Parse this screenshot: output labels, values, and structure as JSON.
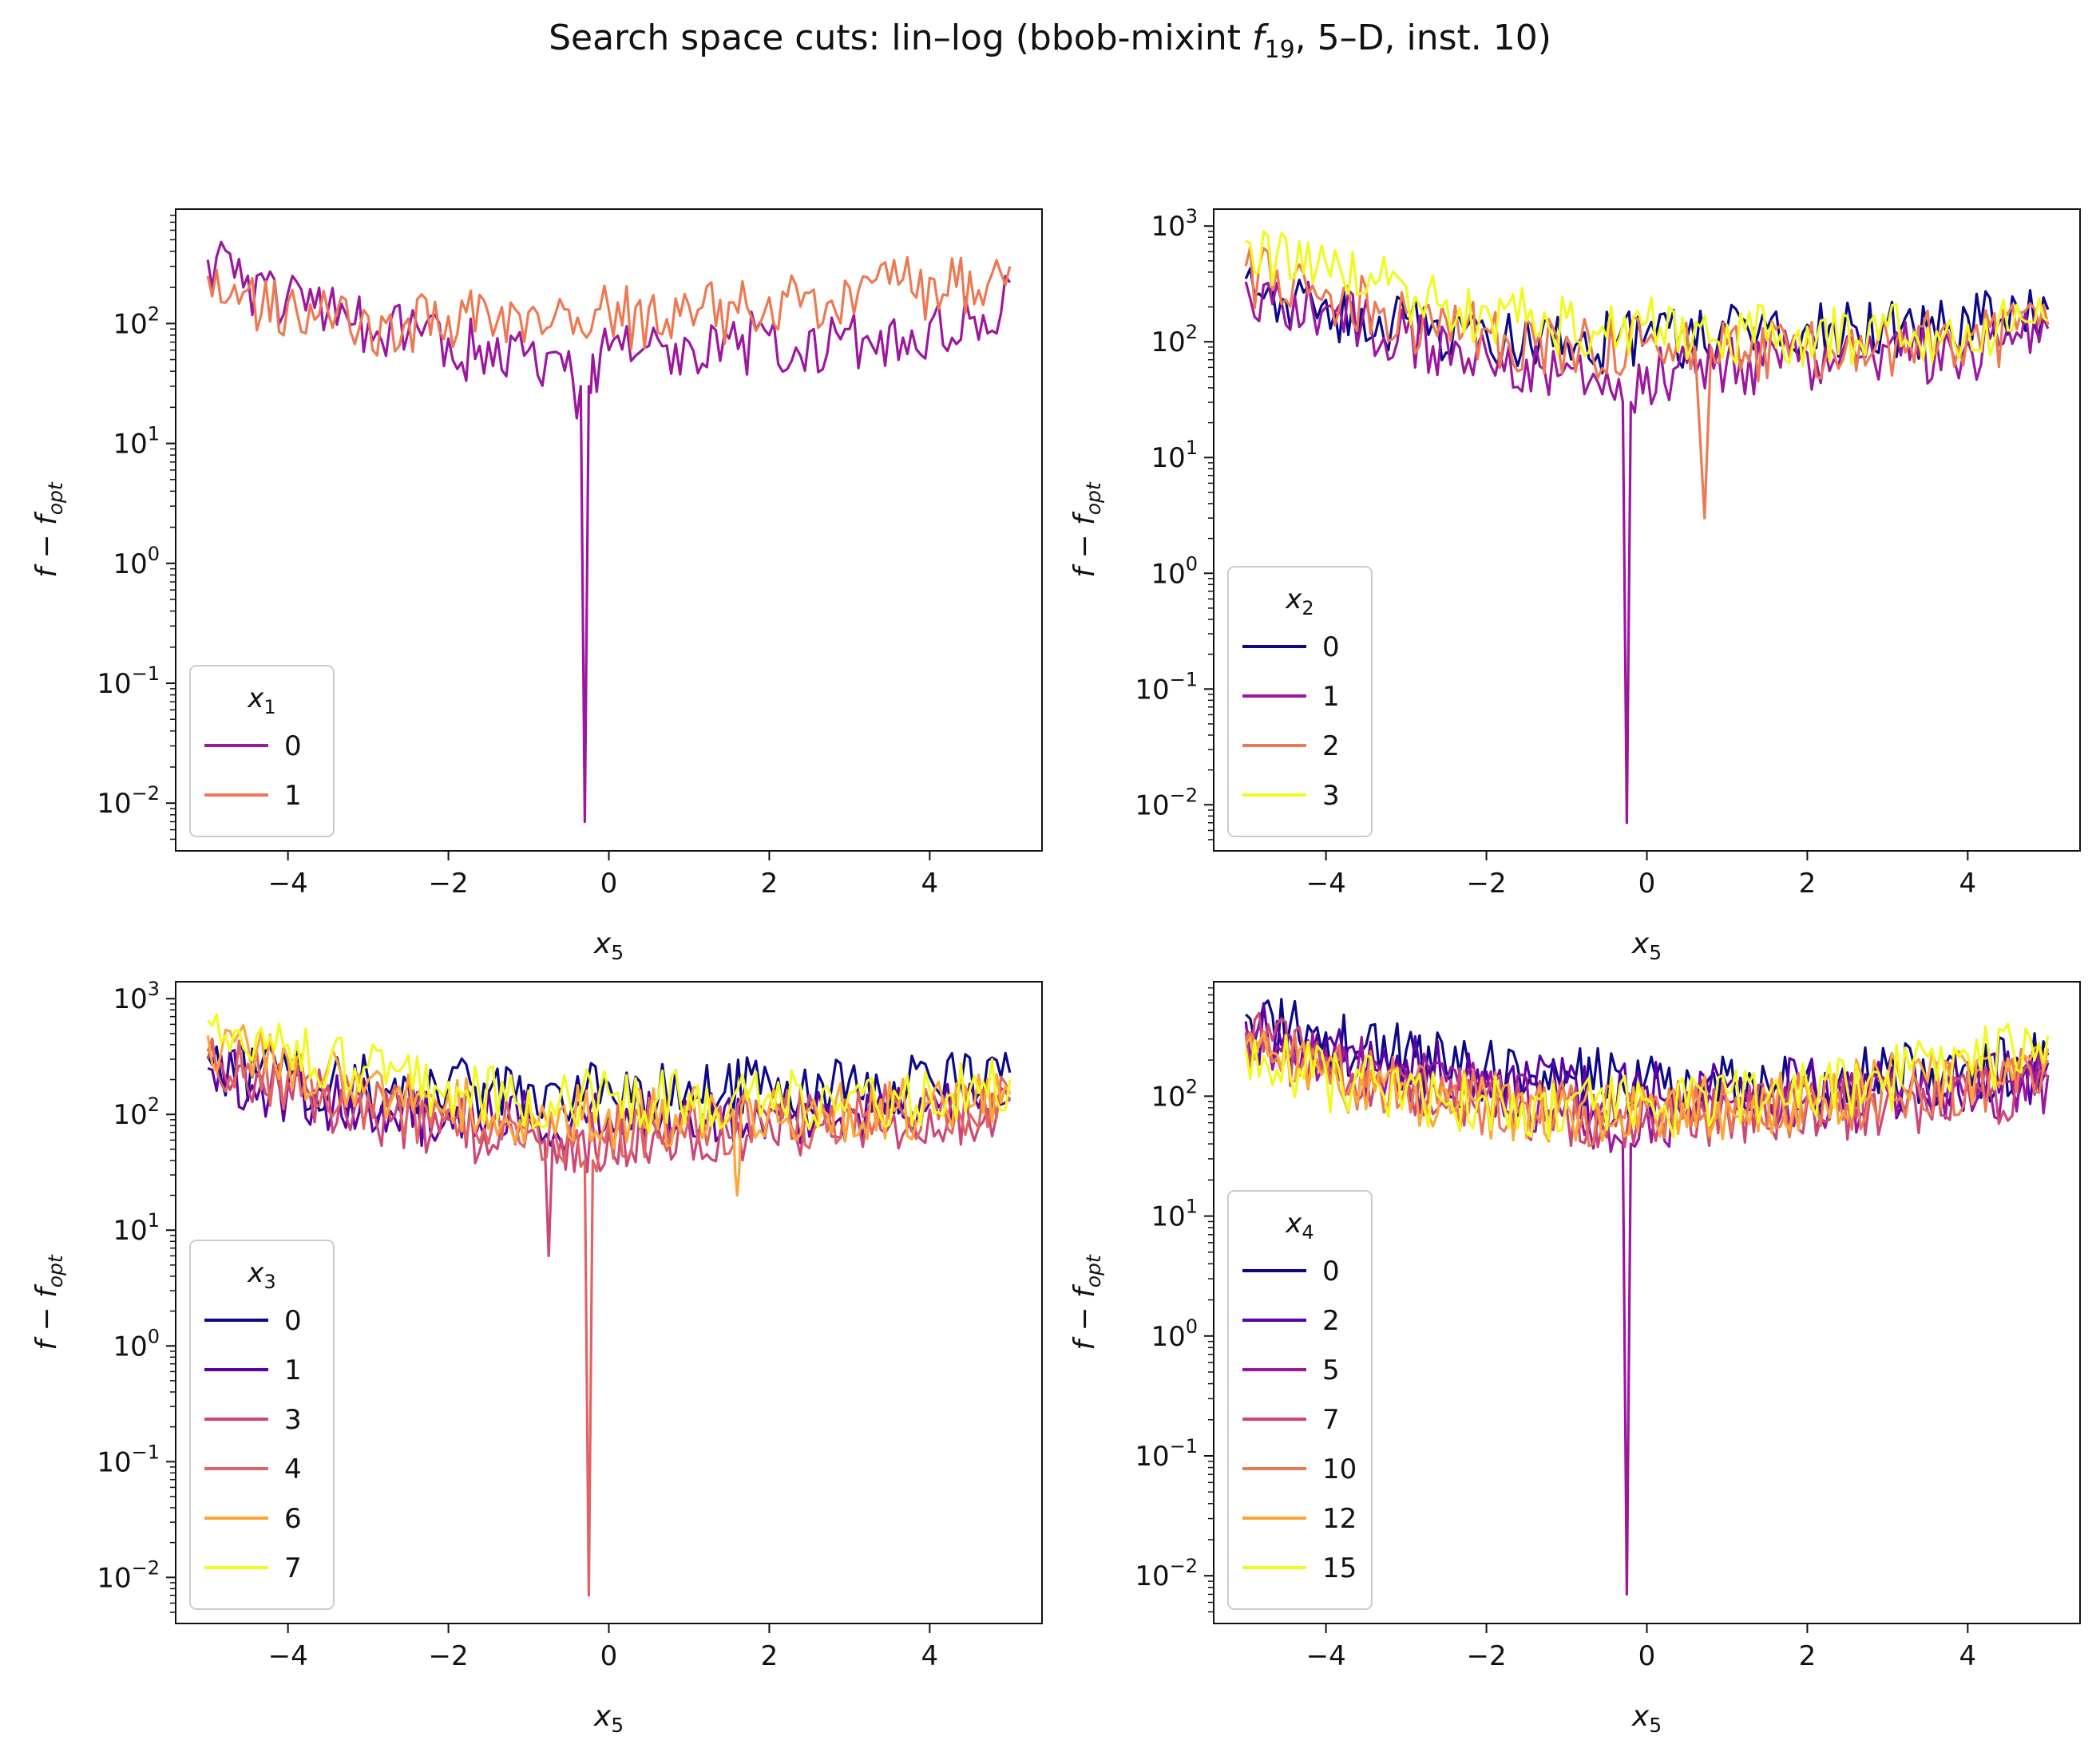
{
  "title": "Search space cuts: lin–log (bbob-mixint f19, 5–D, inst. 10)",
  "title_parts": {
    "pre": "Search space cuts: lin–log (bbob-mixint ",
    "f": "f",
    "sub": "19",
    "post": ", 5–D, inst. 10)"
  },
  "chart_data": [
    {
      "type": "line",
      "panel": "top-left",
      "xlabel": "x5",
      "ylabel": "f − f_opt",
      "xlim": [
        -5.4,
        5.4
      ],
      "ylim": [
        0.004,
        900
      ],
      "yscale": "log",
      "xticks": [
        "−4",
        "−2",
        "0",
        "2",
        "4"
      ],
      "yticks": [
        "10^1",
        "10^2"
      ],
      "legend": {
        "title": "x1",
        "placement": "lower-left"
      },
      "series": [
        {
          "name": "0",
          "color": "#9c179e",
          "x": [
            -5.0,
            -4.5,
            -4.0,
            -3.5,
            -3.0,
            -2.5,
            -2.0,
            -1.5,
            -1.0,
            -0.6,
            -0.35,
            -0.3,
            -0.25,
            -0.2,
            0.0,
            0.5,
            1.0,
            1.5,
            2.0,
            2.5,
            3.0,
            3.5,
            4.0,
            4.5,
            5.0
          ],
          "y": [
            340,
            250,
            180,
            130,
            100,
            85,
            75,
            70,
            60,
            55,
            30,
            0.007,
            30,
            55,
            60,
            65,
            70,
            75,
            80,
            85,
            90,
            95,
            100,
            110,
            220
          ]
        },
        {
          "name": "1",
          "color": "#ed7953",
          "x": [
            -5.0,
            -4.5,
            -4.0,
            -3.5,
            -3.0,
            -2.5,
            -2.0,
            -1.5,
            -1.0,
            -0.5,
            0.0,
            0.5,
            1.0,
            1.5,
            2.0,
            2.5,
            3.0,
            3.5,
            4.0,
            4.5,
            5.0
          ],
          "y": [
            250,
            190,
            150,
            125,
            115,
            110,
            115,
            120,
            125,
            130,
            130,
            135,
            140,
            150,
            165,
            180,
            200,
            215,
            240,
            270,
            300
          ]
        }
      ]
    },
    {
      "type": "line",
      "panel": "top-right",
      "xlabel": "x5",
      "ylabel": "f − f_opt",
      "xlim": [
        -5.4,
        5.4
      ],
      "ylim": [
        0.004,
        1400
      ],
      "yscale": "log",
      "xticks": [
        "−4",
        "−2",
        "0",
        "2",
        "4"
      ],
      "yticks": [
        "10^0",
        "10^1",
        "10^2",
        "10^3"
      ],
      "legend": {
        "title": "x2",
        "placement": "lower-left"
      },
      "series": [
        {
          "name": "0",
          "color": "#0d0887",
          "x": [
            -5.0,
            -4.0,
            -3.0,
            -2.0,
            -1.0,
            0.0,
            1.0,
            2.0,
            3.0,
            4.0,
            5.0
          ],
          "y": [
            350,
            230,
            160,
            120,
            110,
            120,
            130,
            140,
            150,
            165,
            190
          ]
        },
        {
          "name": "1",
          "color": "#9c179e",
          "x": [
            -5.0,
            -4.0,
            -3.0,
            -2.0,
            -1.0,
            -0.5,
            -0.3,
            -0.25,
            -0.2,
            0.0,
            1.0,
            2.0,
            3.0,
            4.0,
            5.0
          ],
          "y": [
            330,
            200,
            120,
            80,
            65,
            55,
            30,
            0.007,
            30,
            60,
            70,
            80,
            90,
            100,
            130
          ]
        },
        {
          "name": "2",
          "color": "#ed7953",
          "x": [
            -5.0,
            -4.0,
            -3.0,
            -2.0,
            -1.0,
            0.0,
            0.6,
            0.72,
            0.8,
            1.0,
            2.0,
            3.0,
            4.0,
            5.0
          ],
          "y": [
            450,
            280,
            180,
            130,
            110,
            100,
            90,
            3.0,
            90,
            95,
            100,
            110,
            120,
            140
          ]
        },
        {
          "name": "3",
          "color": "#f0f921",
          "x": [
            -5.0,
            -4.0,
            -3.0,
            -2.0,
            -1.0,
            0.0,
            1.0,
            2.0,
            3.0,
            4.0,
            5.0
          ],
          "y": [
            750,
            480,
            300,
            200,
            160,
            150,
            140,
            135,
            135,
            140,
            150
          ]
        }
      ]
    },
    {
      "type": "line",
      "panel": "bottom-left",
      "xlabel": "x5",
      "ylabel": "f − f_opt",
      "xlim": [
        -5.4,
        5.4
      ],
      "ylim": [
        0.004,
        1400
      ],
      "yscale": "log",
      "xticks": [
        "−4",
        "−2",
        "0",
        "2",
        "4"
      ],
      "yticks": [
        "10^0",
        "10^1",
        "10^2",
        "10^3"
      ],
      "legend": {
        "title": "x3",
        "placement": "lower-left"
      },
      "series": [
        {
          "name": "0",
          "color": "#0d0887",
          "x": [
            -5.0,
            -4.0,
            -3.0,
            -2.0,
            -1.0,
            0.0,
            1.0,
            2.0,
            3.0,
            4.0,
            5.0
          ],
          "y": [
            320,
            240,
            200,
            190,
            180,
            185,
            190,
            195,
            200,
            210,
            230
          ]
        },
        {
          "name": "1",
          "color": "#5c01a6",
          "x": [
            -5.0,
            -4.0,
            -3.0,
            -2.0,
            -1.0,
            0.0,
            1.0,
            2.0,
            3.0,
            4.0,
            5.0
          ],
          "y": [
            250,
            180,
            130,
            110,
            100,
            100,
            105,
            110,
            115,
            125,
            140
          ]
        },
        {
          "name": "3",
          "color": "#cc4778",
          "x": [
            -5.0,
            -4.0,
            -3.0,
            -2.0,
            -1.0,
            -0.8,
            -0.75,
            -0.7,
            0.0,
            1.0,
            2.0,
            3.0,
            4.0,
            5.0
          ],
          "y": [
            300,
            190,
            120,
            90,
            70,
            60,
            6.0,
            60,
            70,
            80,
            90,
            100,
            110,
            130
          ]
        },
        {
          "name": "4",
          "color": "#e16462",
          "x": [
            -5.0,
            -4.0,
            -3.0,
            -2.0,
            -1.0,
            -0.5,
            -0.3,
            -0.25,
            -0.2,
            0.0,
            1.0,
            2.0,
            3.0,
            4.0,
            5.0
          ],
          "y": [
            350,
            220,
            150,
            110,
            90,
            80,
            40,
            0.007,
            40,
            85,
            95,
            105,
            115,
            125,
            150
          ]
        },
        {
          "name": "6",
          "color": "#fca636",
          "x": [
            -5.0,
            -4.0,
            -3.0,
            -2.0,
            -1.0,
            0.0,
            1.0,
            1.55,
            1.6,
            1.65,
            2.0,
            3.0,
            4.0,
            5.0
          ],
          "y": [
            480,
            300,
            200,
            150,
            120,
            110,
            110,
            110,
            20,
            110,
            115,
            120,
            130,
            150
          ]
        },
        {
          "name": "7",
          "color": "#f0f921",
          "x": [
            -5.0,
            -4.0,
            -3.0,
            -2.0,
            -1.0,
            0.0,
            1.0,
            2.0,
            3.0,
            4.0,
            5.0
          ],
          "y": [
            650,
            400,
            260,
            190,
            160,
            150,
            150,
            150,
            155,
            165,
            200
          ]
        }
      ]
    },
    {
      "type": "line",
      "panel": "bottom-right",
      "xlabel": "x5",
      "ylabel": "f − f_opt",
      "xlim": [
        -5.4,
        5.4
      ],
      "ylim": [
        0.004,
        900
      ],
      "yscale": "log",
      "xticks": [
        "−4",
        "−2",
        "0",
        "2",
        "4"
      ],
      "yticks": [
        "10^1",
        "10^2"
      ],
      "legend": {
        "title": "x4",
        "placement": "lower-left"
      },
      "series": [
        {
          "name": "0",
          "color": "#0d0887",
          "x": [
            -5.0,
            -4.0,
            -3.0,
            -2.0,
            -1.0,
            0.0,
            1.0,
            2.0,
            3.0,
            4.0,
            5.0
          ],
          "y": [
            480,
            340,
            240,
            190,
            160,
            150,
            150,
            160,
            170,
            190,
            220
          ]
        },
        {
          "name": "2",
          "color": "#5c01a6",
          "x": [
            -5.0,
            -4.0,
            -3.0,
            -2.0,
            -1.0,
            0.0,
            1.0,
            2.0,
            3.0,
            4.0,
            5.0
          ],
          "y": [
            420,
            290,
            200,
            160,
            130,
            120,
            120,
            130,
            140,
            160,
            190
          ]
        },
        {
          "name": "5",
          "color": "#9c179e",
          "x": [
            -5.0,
            -4.0,
            -3.0,
            -2.0,
            -1.0,
            -0.5,
            -0.3,
            -0.25,
            -0.2,
            0.0,
            1.0,
            2.0,
            3.0,
            4.0,
            5.0
          ],
          "y": [
            380,
            240,
            160,
            120,
            90,
            70,
            40,
            0.007,
            40,
            80,
            90,
            100,
            110,
            125,
            150
          ]
        },
        {
          "name": "7",
          "color": "#cc4778",
          "x": [
            -5.0,
            -4.0,
            -3.0,
            -2.0,
            -1.0,
            0.0,
            1.0,
            2.0,
            3.0,
            4.0,
            5.0
          ],
          "y": [
            340,
            210,
            140,
            100,
            80,
            75,
            80,
            90,
            100,
            115,
            140
          ]
        },
        {
          "name": "10",
          "color": "#ed7953",
          "x": [
            -5.0,
            -4.0,
            -3.0,
            -2.0,
            -1.0,
            0.0,
            1.0,
            2.0,
            3.0,
            4.0,
            5.0
          ],
          "y": [
            300,
            190,
            130,
            100,
            85,
            80,
            90,
            100,
            120,
            150,
            200
          ]
        },
        {
          "name": "12",
          "color": "#fca636",
          "x": [
            -5.0,
            -4.0,
            -3.0,
            -2.0,
            -1.0,
            0.0,
            1.0,
            2.0,
            3.0,
            4.0,
            5.0
          ],
          "y": [
            270,
            170,
            120,
            95,
            85,
            85,
            95,
            110,
            140,
            180,
            250
          ]
        },
        {
          "name": "15",
          "color": "#f0f921",
          "x": [
            -5.0,
            -4.0,
            -3.0,
            -2.0,
            -1.0,
            0.0,
            1.0,
            2.0,
            3.0,
            4.0,
            5.0
          ],
          "y": [
            250,
            160,
            115,
            95,
            90,
            95,
            105,
            125,
            160,
            220,
            320
          ]
        }
      ]
    }
  ]
}
